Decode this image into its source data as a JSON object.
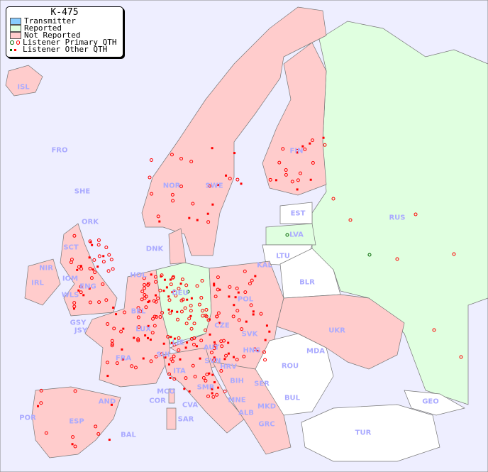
{
  "title": "K-475",
  "legend": [
    {
      "label": "Transmitter",
      "color": "#88ccff"
    },
    {
      "label": "Reported",
      "color": "#e0ffe0"
    },
    {
      "label": "Not Reported",
      "color": "#ffcccc"
    },
    {
      "label": "Listener Primary QTH",
      "colors": [
        "#006600",
        "#ff0000"
      ]
    },
    {
      "label": "Listener Other QTH",
      "colors": [
        "#006600",
        "#ff0000"
      ]
    }
  ],
  "colors": {
    "sea": "#eeeeff",
    "reported": "#e0ffe0",
    "not_reported": "#ffcccc",
    "no_data": "#ffffff",
    "label": "#aaaaff",
    "listener": "#ff0000",
    "listener_reported": "#006600"
  },
  "countries": [
    "ISL",
    "FRO",
    "SHE",
    "ORK",
    "NOR",
    "SWE",
    "FIN",
    "RUS",
    "EST",
    "LVA",
    "LTU",
    "KAL",
    "DNK",
    "HOL",
    "IRL",
    "NIR",
    "SCT",
    "IOM",
    "WLS",
    "ENG",
    "GSY",
    "JSY",
    "BEL",
    "LUX",
    "DEU",
    "POL",
    "BLR",
    "UKR",
    "CZE",
    "SVK",
    "AUT",
    "HNG",
    "MDA",
    "ROU",
    "FRA",
    "SUI",
    "LIE",
    "SVN",
    "HRV",
    "BIH",
    "SER",
    "ITA",
    "MCO",
    "COR",
    "SMR",
    "CVA",
    "MNE",
    "ALB",
    "MKD",
    "BUL",
    "GRC",
    "TUR",
    "GEO",
    "AND",
    "ESP",
    "POR",
    "BAL",
    "SAR"
  ]
}
